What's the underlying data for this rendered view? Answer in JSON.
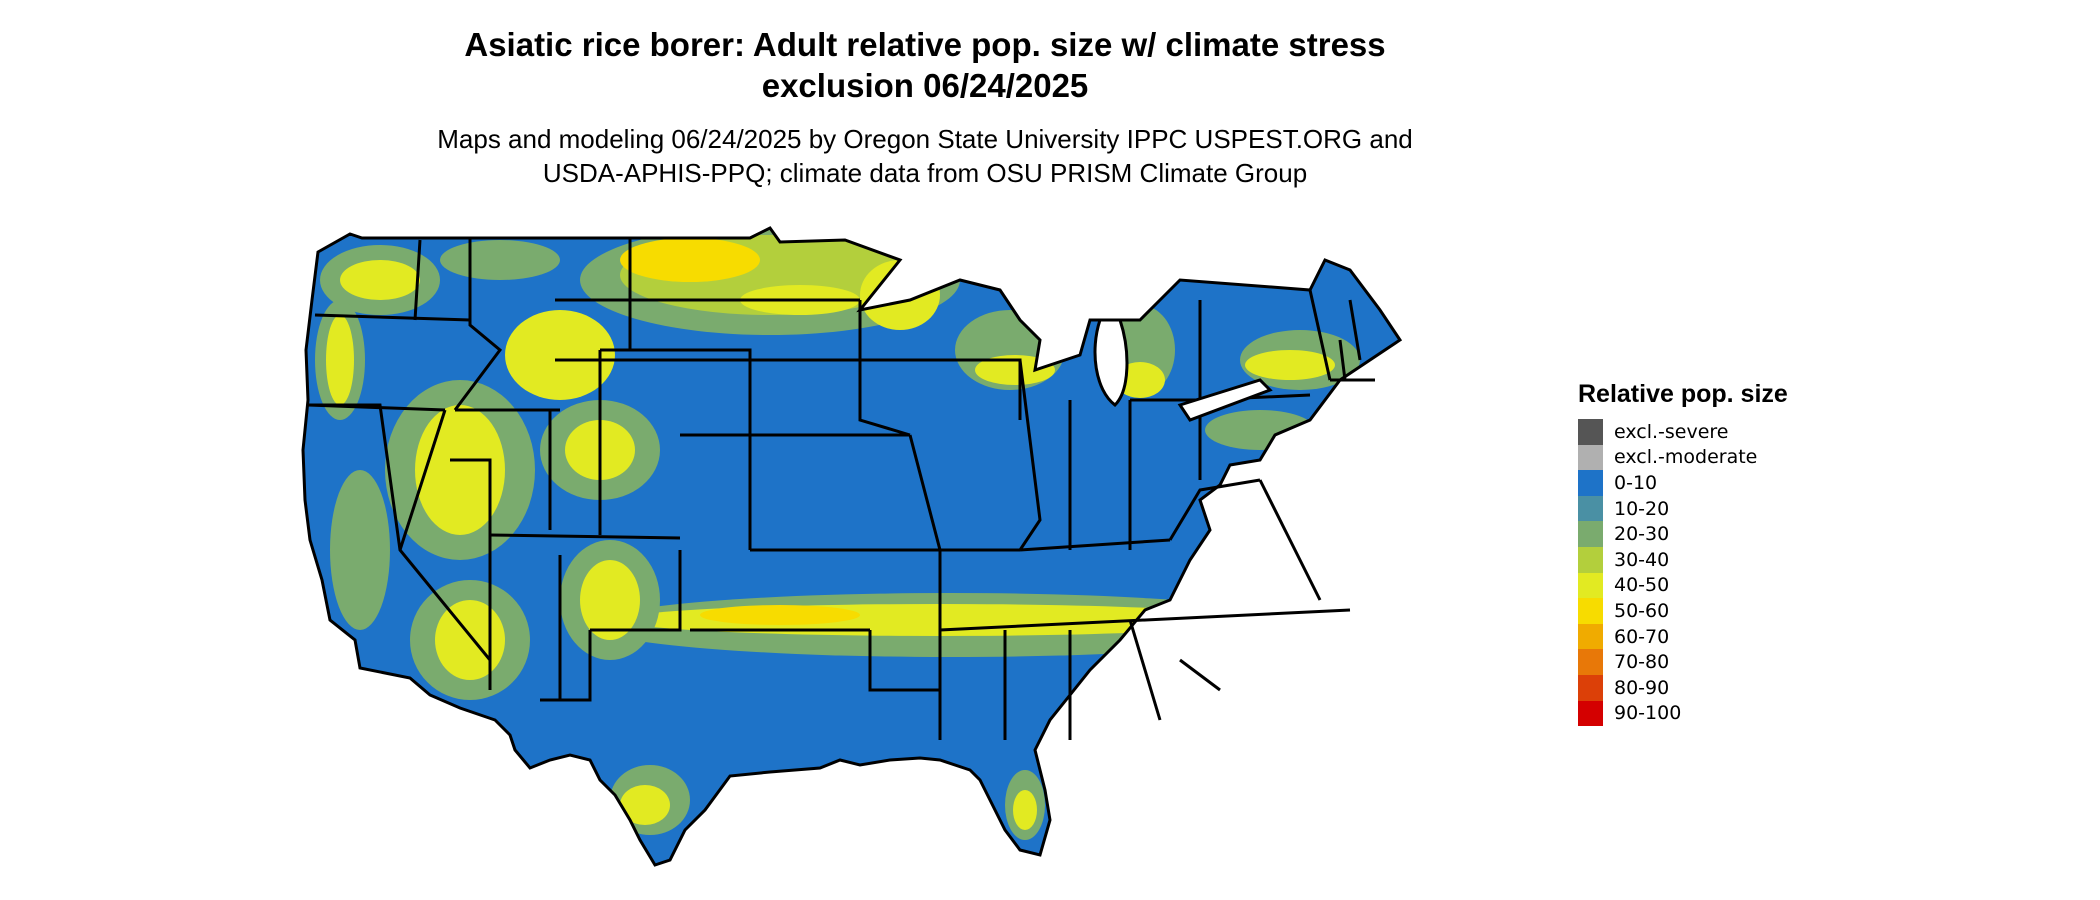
{
  "title_line1": "Asiatic rice borer: Adult relative pop. size w/ climate stress",
  "title_line2": "exclusion 06/24/2025",
  "subtitle_line1": "Maps and modeling 06/24/2025 by Oregon State University IPPC USPEST.ORG and",
  "subtitle_line2": "USDA-APHIS-PPQ; climate data from OSU PRISM Climate Group",
  "legend": {
    "title": "Relative pop. size",
    "items": [
      {
        "label": "excl.-severe",
        "color": "#555555"
      },
      {
        "label": "excl.-moderate",
        "color": "#b0b0b0"
      },
      {
        "label": "0-10",
        "color": "#1e73c8"
      },
      {
        "label": "10-20",
        "color": "#4a90a4"
      },
      {
        "label": "20-30",
        "color": "#7aab6e"
      },
      {
        "label": "30-40",
        "color": "#b3cf3c"
      },
      {
        "label": "40-50",
        "color": "#e2ea22"
      },
      {
        "label": "50-60",
        "color": "#f7dc00"
      },
      {
        "label": "60-70",
        "color": "#f0ab00"
      },
      {
        "label": "70-80",
        "color": "#e87808"
      },
      {
        "label": "80-90",
        "color": "#dc4008"
      },
      {
        "label": "90-100",
        "color": "#d40000"
      }
    ]
  },
  "map": {
    "region": "contiguous-united-states",
    "base_color": "#1e73c8",
    "border_color": "#000000"
  }
}
